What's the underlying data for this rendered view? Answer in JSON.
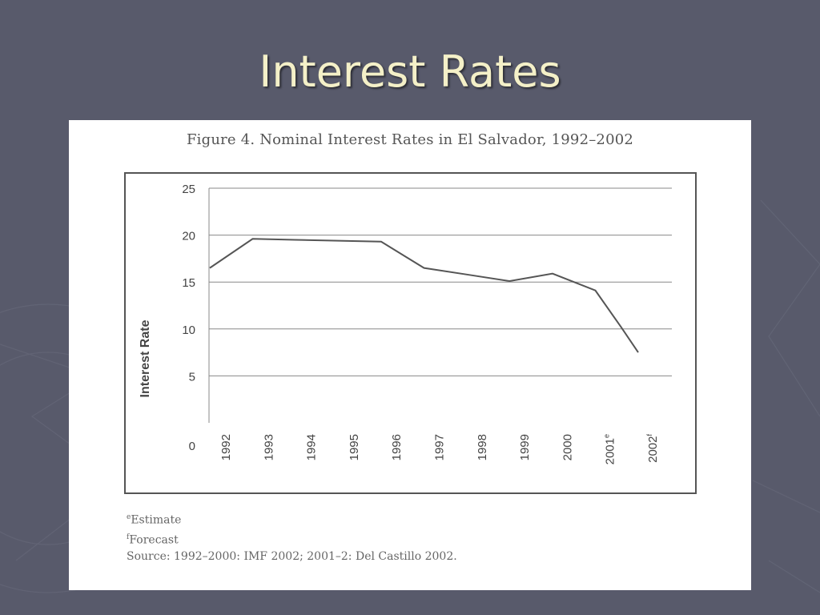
{
  "slide": {
    "title": "Interest Rates"
  },
  "figure": {
    "caption": "Figure 4. Nominal Interest Rates in El Salvador, 1992–2002",
    "notes": {
      "estimate_mark": "e",
      "estimate_text": "Estimate",
      "forecast_mark": "f",
      "forecast_text": "Forecast",
      "source": "Source: 1992–2000: IMF 2002; 2001–2: Del Castillo 2002."
    }
  },
  "chart_data": {
    "type": "line",
    "title": "Figure 4. Nominal Interest Rates in El Salvador, 1992–2002",
    "xlabel": "",
    "ylabel": "Interest Rate",
    "categories": [
      "1992",
      "1993",
      "1994",
      "1995",
      "1996",
      "1997",
      "1998",
      "1999",
      "2000",
      "2001",
      "2002"
    ],
    "category_superscripts": [
      "",
      "",
      "",
      "",
      "",
      "",
      "",
      "",
      "",
      "e",
      "f"
    ],
    "series": [
      {
        "values": [
          16.5,
          19.6,
          19.5,
          19.4,
          19.3,
          16.5,
          15.8,
          15.1,
          15.9,
          14.1,
          10.2,
          7.5
        ]
      }
    ],
    "x": [
      1992,
      1993,
      1994,
      1995,
      1996,
      1997,
      1998,
      1999,
      2000,
      2001,
      2001.6,
      2002
    ],
    "y": [
      16.5,
      19.6,
      19.5,
      19.4,
      19.3,
      16.5,
      15.8,
      15.1,
      15.9,
      14.1,
      10.2,
      7.5
    ],
    "ylim": [
      0,
      25
    ],
    "yticks": [
      0,
      5,
      10,
      15,
      20,
      25
    ],
    "grid": true,
    "colors": {
      "line": "#555555",
      "grid": "#888888",
      "frame": "#555555"
    }
  }
}
